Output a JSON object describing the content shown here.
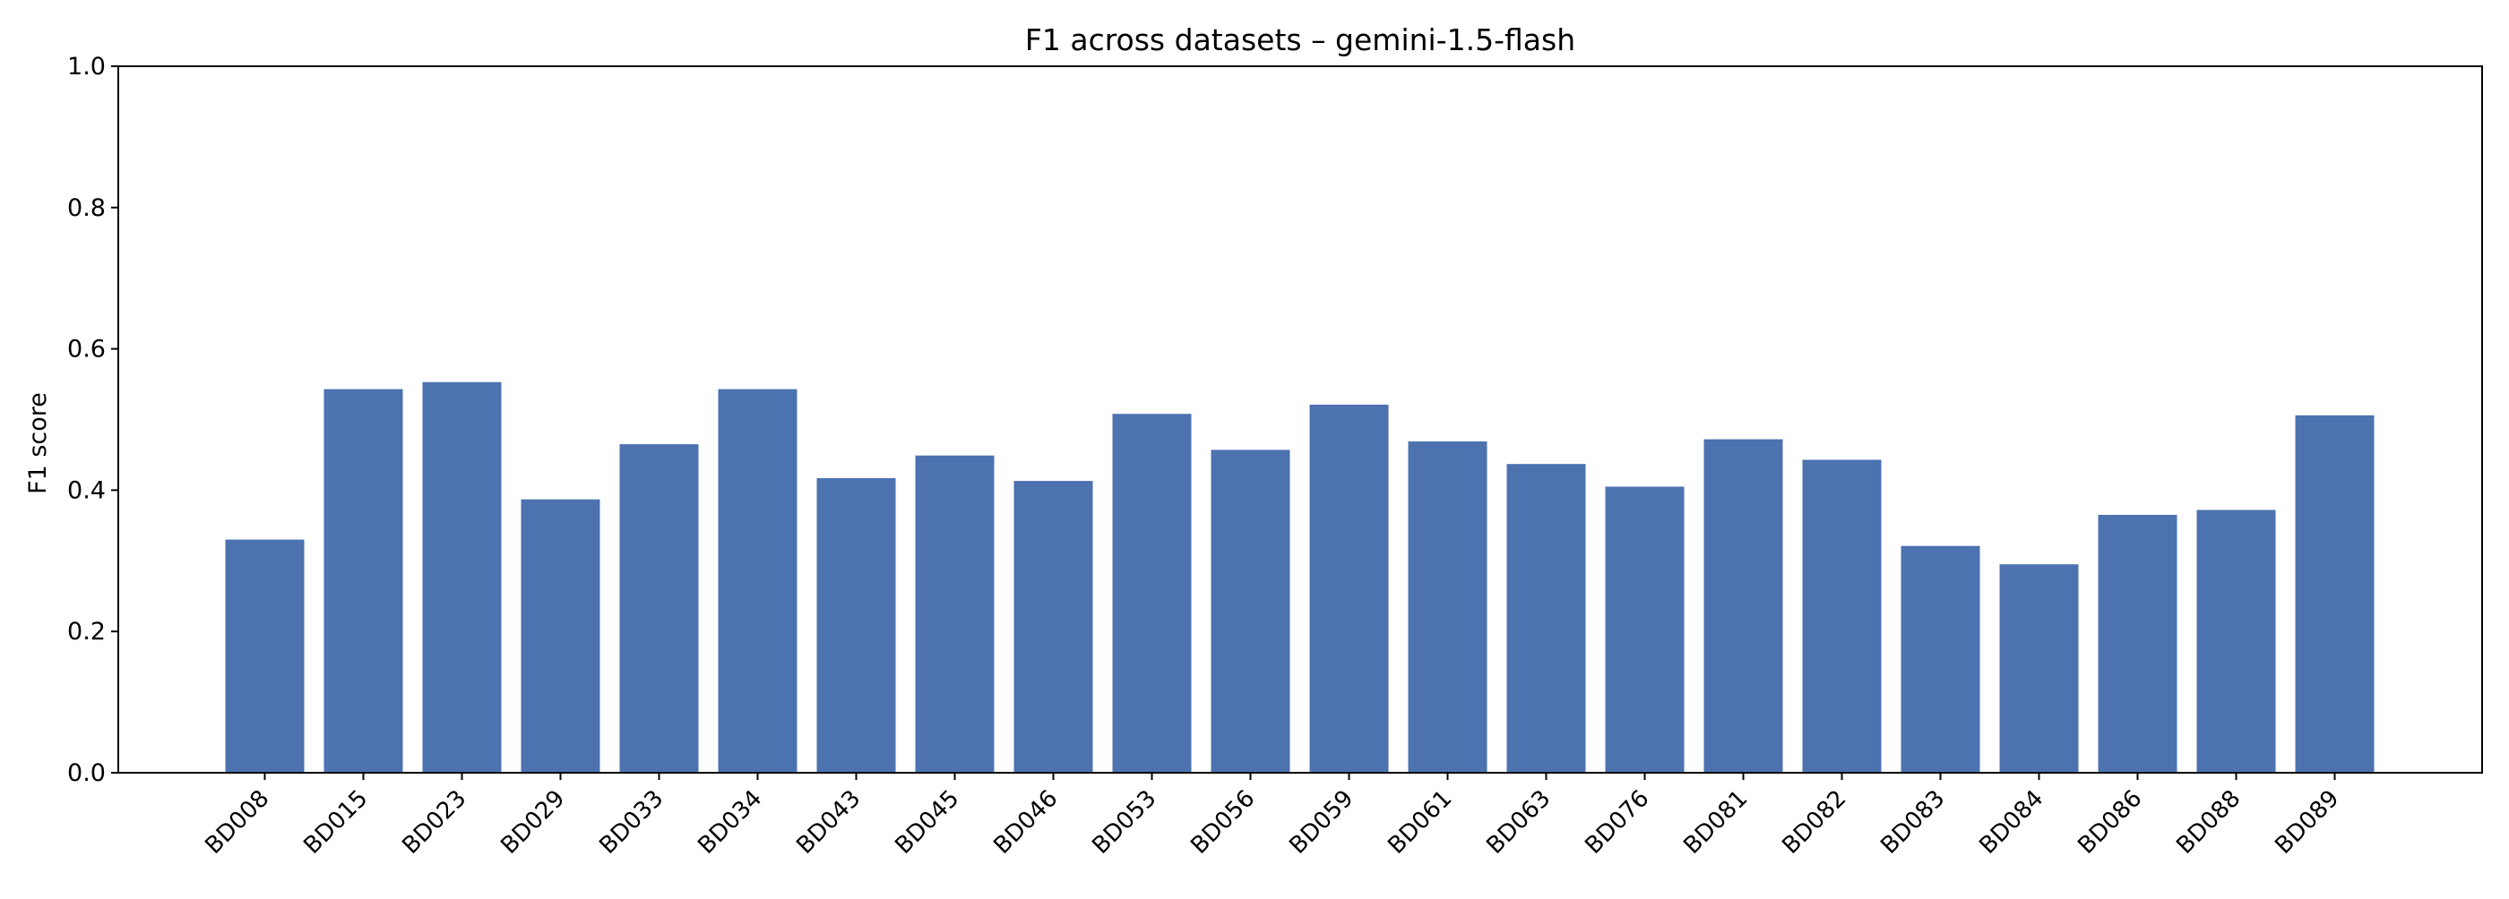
{
  "chart_data": {
    "type": "bar",
    "title": "F1 across datasets – gemini-1.5-flash",
    "xlabel": "",
    "ylabel": "F1 score",
    "categories": [
      "BD008",
      "BD015",
      "BD023",
      "BD029",
      "BD033",
      "BD034",
      "BD043",
      "BD045",
      "BD046",
      "BD053",
      "BD056",
      "BD059",
      "BD061",
      "BD063",
      "BD076",
      "BD081",
      "BD082",
      "BD083",
      "BD084",
      "BD086",
      "BD088",
      "BD089"
    ],
    "values": [
      0.33,
      0.543,
      0.553,
      0.387,
      0.465,
      0.543,
      0.417,
      0.449,
      0.413,
      0.508,
      0.457,
      0.521,
      0.469,
      0.437,
      0.405,
      0.472,
      0.443,
      0.321,
      0.295,
      0.365,
      0.372,
      0.506
    ],
    "ylim": [
      0,
      1.0
    ],
    "yticks": [
      "0.0",
      "0.2",
      "0.4",
      "0.6",
      "0.8",
      "1.0"
    ],
    "grid": false,
    "bar_color": "#4c72b0"
  }
}
